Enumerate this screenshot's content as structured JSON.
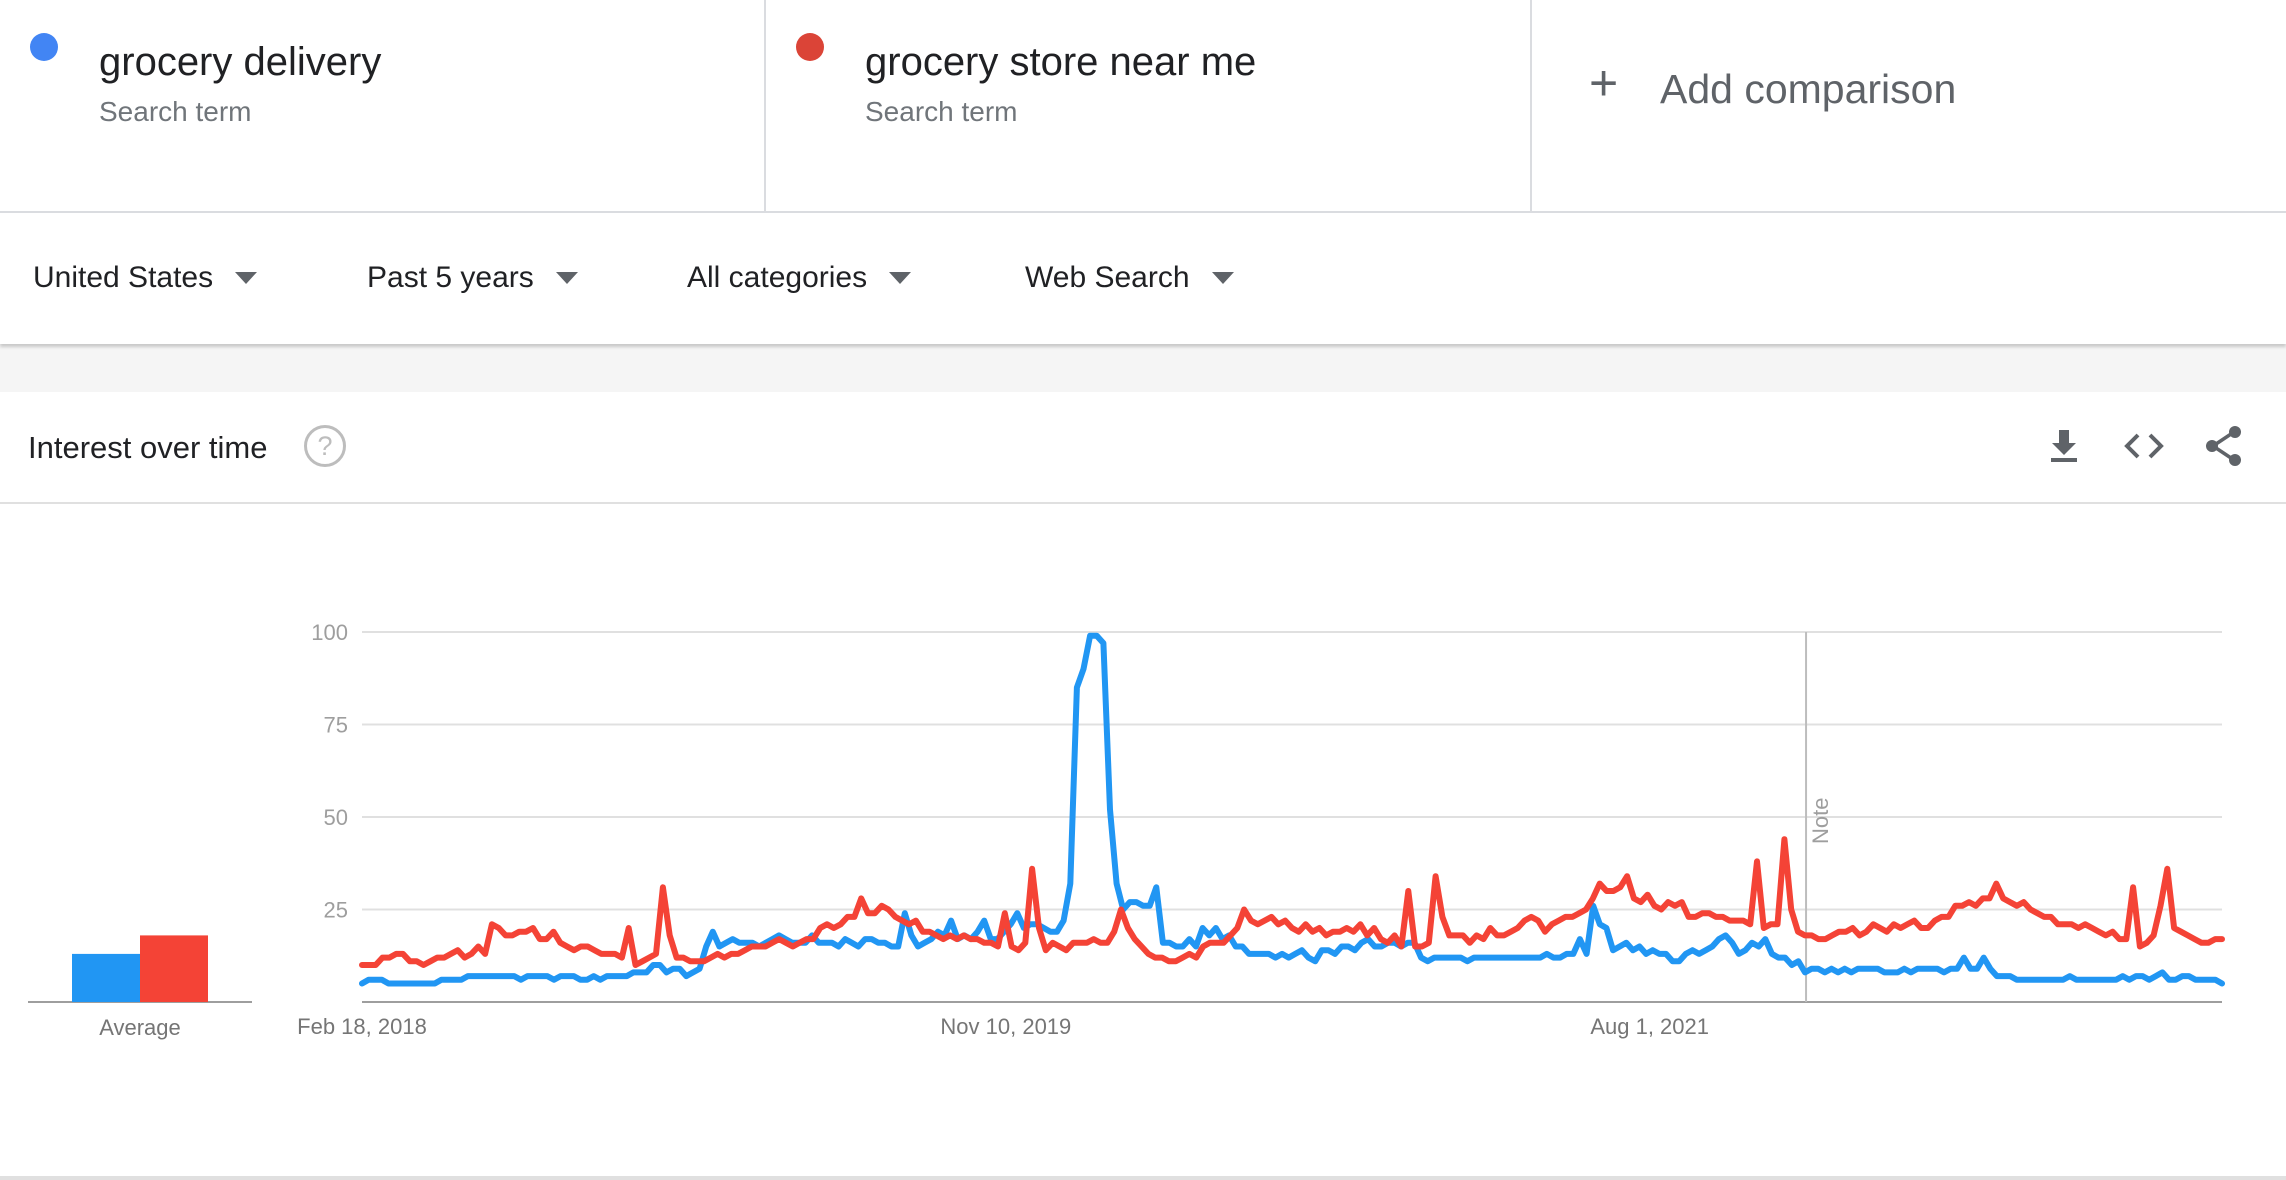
{
  "terms": [
    {
      "name": "grocery delivery",
      "subtitle": "Search term",
      "color": "#4285f4"
    },
    {
      "name": "grocery store near me",
      "subtitle": "Search term",
      "color": "#db4437"
    }
  ],
  "add_comparison": {
    "icon": "plus-icon",
    "label": "Add comparison"
  },
  "filters": {
    "region": "United States",
    "time_range": "Past 5 years",
    "category": "All categories",
    "search_type": "Web Search"
  },
  "card": {
    "title": "Interest over time",
    "help_glyph": "?",
    "tools": [
      "download-icon",
      "embed-icon",
      "share-icon"
    ]
  },
  "chart_data": {
    "type": "line",
    "x_tick_labels": [
      "Feb 18, 2018",
      "Nov 10, 2019",
      "Aug 1, 2021"
    ],
    "x_start": "2018-02-18",
    "x_end": "2023-02-12",
    "y_ticks": [
      25,
      50,
      75,
      100
    ],
    "ylim": [
      0,
      100
    ],
    "grid": true,
    "note_label": "Note",
    "note_date": "2022-01-01",
    "average_label": "Average",
    "averages": [
      13,
      18
    ],
    "series": [
      {
        "name": "grocery delivery",
        "color": "#2196f3",
        "values": [
          5,
          6,
          6,
          6,
          5,
          5,
          5,
          5,
          5,
          5,
          5,
          5,
          6,
          6,
          6,
          6,
          7,
          7,
          7,
          7,
          7,
          7,
          7,
          7,
          6,
          7,
          7,
          7,
          7,
          6,
          7,
          7,
          7,
          6,
          6,
          7,
          6,
          7,
          7,
          7,
          7,
          8,
          8,
          8,
          10,
          10,
          8,
          9,
          9,
          7,
          8,
          9,
          15,
          19,
          15,
          16,
          17,
          16,
          16,
          16,
          15,
          16,
          17,
          18,
          17,
          16,
          16,
          16,
          18,
          16,
          16,
          16,
          15,
          17,
          16,
          15,
          17,
          17,
          16,
          16,
          15,
          15,
          24,
          18,
          15,
          16,
          17,
          19,
          18,
          22,
          17,
          18,
          17,
          19,
          22,
          17,
          17,
          19,
          21,
          24,
          20,
          21,
          21,
          20,
          19,
          19,
          22,
          32,
          85,
          90,
          99,
          99,
          97,
          52,
          32,
          25,
          27,
          27,
          26,
          26,
          31,
          16,
          16,
          15,
          15,
          17,
          15,
          20,
          18,
          20,
          17,
          18,
          15,
          15,
          13,
          13,
          13,
          13,
          12,
          13,
          12,
          13,
          14,
          12,
          11,
          14,
          14,
          13,
          15,
          15,
          14,
          16,
          17,
          15,
          15,
          16,
          16,
          15,
          16,
          16,
          12,
          11,
          12,
          12,
          12,
          12,
          12,
          11,
          12,
          12,
          12,
          12,
          12,
          12,
          12,
          12,
          12,
          12,
          12,
          13,
          12,
          12,
          13,
          13,
          17,
          13,
          26,
          21,
          20,
          14,
          15,
          16,
          14,
          15,
          13,
          14,
          13,
          13,
          11,
          11,
          13,
          14,
          13,
          14,
          15,
          17,
          18,
          16,
          13,
          14,
          16,
          15,
          17,
          13,
          12,
          12,
          10,
          11,
          8,
          9,
          9,
          8,
          9,
          8,
          9,
          8,
          9,
          9,
          9,
          9,
          8,
          8,
          8,
          9,
          8,
          9,
          9,
          9,
          9,
          8,
          9,
          9,
          12,
          9,
          9,
          12,
          9,
          7,
          7,
          7,
          6,
          6,
          6,
          6,
          6,
          6,
          6,
          6,
          7,
          6,
          6,
          6,
          6,
          6,
          6,
          6,
          7,
          6,
          7,
          7,
          6,
          7,
          8,
          6,
          6,
          7,
          7,
          6,
          6,
          6,
          6,
          5
        ]
      },
      {
        "name": "grocery store near me",
        "color": "#f44336",
        "values": [
          10,
          10,
          10,
          12,
          12,
          13,
          13,
          11,
          11,
          10,
          11,
          12,
          12,
          13,
          14,
          12,
          13,
          15,
          13,
          21,
          20,
          18,
          18,
          19,
          19,
          20,
          17,
          17,
          19,
          16,
          15,
          14,
          15,
          15,
          14,
          13,
          13,
          13,
          12,
          20,
          10,
          11,
          12,
          13,
          31,
          18,
          12,
          12,
          11,
          11,
          11,
          12,
          13,
          12,
          13,
          13,
          14,
          15,
          15,
          15,
          16,
          17,
          16,
          15,
          16,
          17,
          17,
          20,
          21,
          20,
          21,
          23,
          23,
          28,
          24,
          24,
          26,
          25,
          23,
          22,
          21,
          22,
          19,
          19,
          18,
          17,
          18,
          17,
          18,
          17,
          17,
          16,
          16,
          15,
          24,
          15,
          14,
          16,
          36,
          20,
          14,
          16,
          15,
          14,
          16,
          16,
          16,
          17,
          16,
          16,
          19,
          25,
          20,
          17,
          15,
          13,
          12,
          12,
          11,
          11,
          12,
          13,
          12,
          15,
          16,
          16,
          16,
          18,
          20,
          25,
          22,
          21,
          22,
          23,
          21,
          22,
          20,
          19,
          21,
          19,
          20,
          18,
          19,
          19,
          20,
          19,
          21,
          18,
          20,
          17,
          16,
          18,
          15,
          30,
          15,
          15,
          16,
          34,
          23,
          18,
          18,
          18,
          16,
          18,
          17,
          20,
          18,
          18,
          19,
          20,
          22,
          23,
          22,
          19,
          21,
          22,
          23,
          23,
          24,
          25,
          28,
          32,
          30,
          30,
          31,
          34,
          28,
          27,
          29,
          26,
          25,
          27,
          26,
          27,
          23,
          23,
          24,
          24,
          23,
          23,
          22,
          22,
          22,
          21,
          38,
          20,
          21,
          21,
          44,
          25,
          19,
          18,
          18,
          17,
          17,
          18,
          19,
          19,
          20,
          18,
          19,
          21,
          20,
          19,
          21,
          20,
          21,
          22,
          20,
          20,
          22,
          23,
          23,
          26,
          26,
          27,
          26,
          28,
          28,
          32,
          28,
          27,
          26,
          27,
          25,
          24,
          23,
          23,
          21,
          21,
          21,
          20,
          21,
          20,
          19,
          18,
          19,
          17,
          17,
          31,
          15,
          16,
          18,
          26,
          36,
          20,
          19,
          18,
          17,
          16,
          16,
          17,
          17
        ]
      }
    ]
  }
}
